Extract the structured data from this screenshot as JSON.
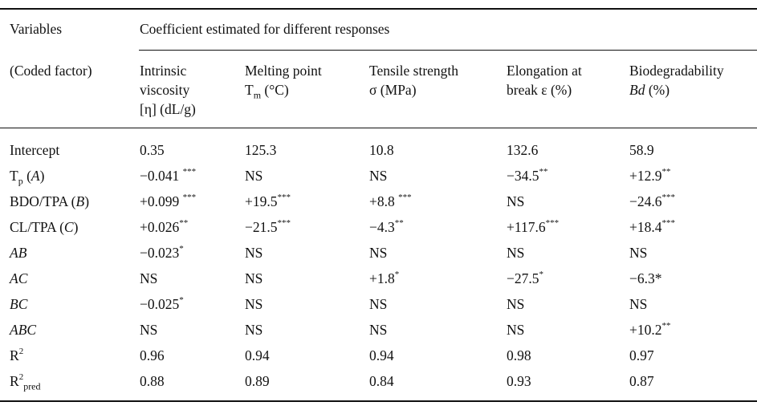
{
  "header": {
    "variables": "Variables",
    "coded_factor": "(Coded factor)",
    "span_title": "Coefficient estimated for different responses",
    "columns": [
      {
        "line1": "Intrinsic",
        "line2": "viscosity",
        "line3": "[η] (dL/g)"
      },
      {
        "line1": "Melting point",
        "line2_pre": "T",
        "line2_sub": "m",
        "line2_post": " (°C)"
      },
      {
        "line1": "Tensile strength",
        "line2": "σ (MPa)"
      },
      {
        "line1": "Elongation at",
        "line2": "break ε (%)"
      },
      {
        "line1": "Biodegradability",
        "line2_it": "Bd",
        "line2_post": " (%)"
      }
    ]
  },
  "rows": [
    {
      "label": "Intercept",
      "cells": [
        {
          "v": "0.35",
          "s": ""
        },
        {
          "v": "125.3",
          "s": ""
        },
        {
          "v": "10.8",
          "s": ""
        },
        {
          "v": "132.6",
          "s": ""
        },
        {
          "v": "58.9",
          "s": ""
        }
      ]
    },
    {
      "label_pre": "T",
      "label_sub": "p",
      "label_post": " (",
      "label_it": "A",
      "label_end": ")",
      "cells": [
        {
          "v": "−0.041 ",
          "s": "***"
        },
        {
          "v": "NS",
          "s": ""
        },
        {
          "v": "NS",
          "s": ""
        },
        {
          "v": "−34.5",
          "s": "**"
        },
        {
          "v": "+12.9",
          "s": "**"
        }
      ]
    },
    {
      "label_pre": "BDO/TPA (",
      "label_it": "B",
      "label_end": ")",
      "cells": [
        {
          "v": "+0.099 ",
          "s": "***"
        },
        {
          "v": "+19.5",
          "s": "***"
        },
        {
          "v": "+8.8 ",
          "s": "***"
        },
        {
          "v": "NS",
          "s": ""
        },
        {
          "v": "−24.6",
          "s": "***"
        }
      ]
    },
    {
      "label_pre": "CL/TPA (",
      "label_it": "C",
      "label_end": ")",
      "cells": [
        {
          "v": "+0.026",
          "s": "**"
        },
        {
          "v": "−21.5",
          "s": "***"
        },
        {
          "v": "−4.3",
          "s": "**"
        },
        {
          "v": "+117.6",
          "s": "***"
        },
        {
          "v": "+18.4",
          "s": "***"
        }
      ]
    },
    {
      "label_it_only": "AB",
      "cells": [
        {
          "v": "−0.023",
          "s": "*"
        },
        {
          "v": "NS",
          "s": ""
        },
        {
          "v": "NS",
          "s": ""
        },
        {
          "v": "NS",
          "s": ""
        },
        {
          "v": "NS",
          "s": ""
        }
      ]
    },
    {
      "label_it_only": "AC",
      "cells": [
        {
          "v": "NS",
          "s": ""
        },
        {
          "v": "NS",
          "s": ""
        },
        {
          "v": "+1.8",
          "s": "*"
        },
        {
          "v": "−27.5",
          "s": "*"
        },
        {
          "v": "−6.3*",
          "s": ""
        }
      ]
    },
    {
      "label_it_only": "BC",
      "cells": [
        {
          "v": "−0.025",
          "s": "*"
        },
        {
          "v": "NS",
          "s": ""
        },
        {
          "v": "NS",
          "s": ""
        },
        {
          "v": "NS",
          "s": ""
        },
        {
          "v": "NS",
          "s": ""
        }
      ]
    },
    {
      "label_it_only": "ABC",
      "cells": [
        {
          "v": "NS",
          "s": ""
        },
        {
          "v": "NS",
          "s": ""
        },
        {
          "v": "NS",
          "s": ""
        },
        {
          "v": "NS",
          "s": ""
        },
        {
          "v": "+10.2",
          "s": "**"
        }
      ]
    },
    {
      "label_pre": "R",
      "label_sup": "2",
      "cells": [
        {
          "v": "0.96",
          "s": ""
        },
        {
          "v": "0.94",
          "s": ""
        },
        {
          "v": "0.94",
          "s": ""
        },
        {
          "v": "0.98",
          "s": ""
        },
        {
          "v": "0.97",
          "s": ""
        }
      ]
    },
    {
      "label_pre": "R",
      "label_sup": "2",
      "label_sub": "pred",
      "cells": [
        {
          "v": "0.88",
          "s": ""
        },
        {
          "v": "0.89",
          "s": ""
        },
        {
          "v": "0.84",
          "s": ""
        },
        {
          "v": "0.93",
          "s": ""
        },
        {
          "v": "0.87",
          "s": ""
        }
      ]
    }
  ]
}
